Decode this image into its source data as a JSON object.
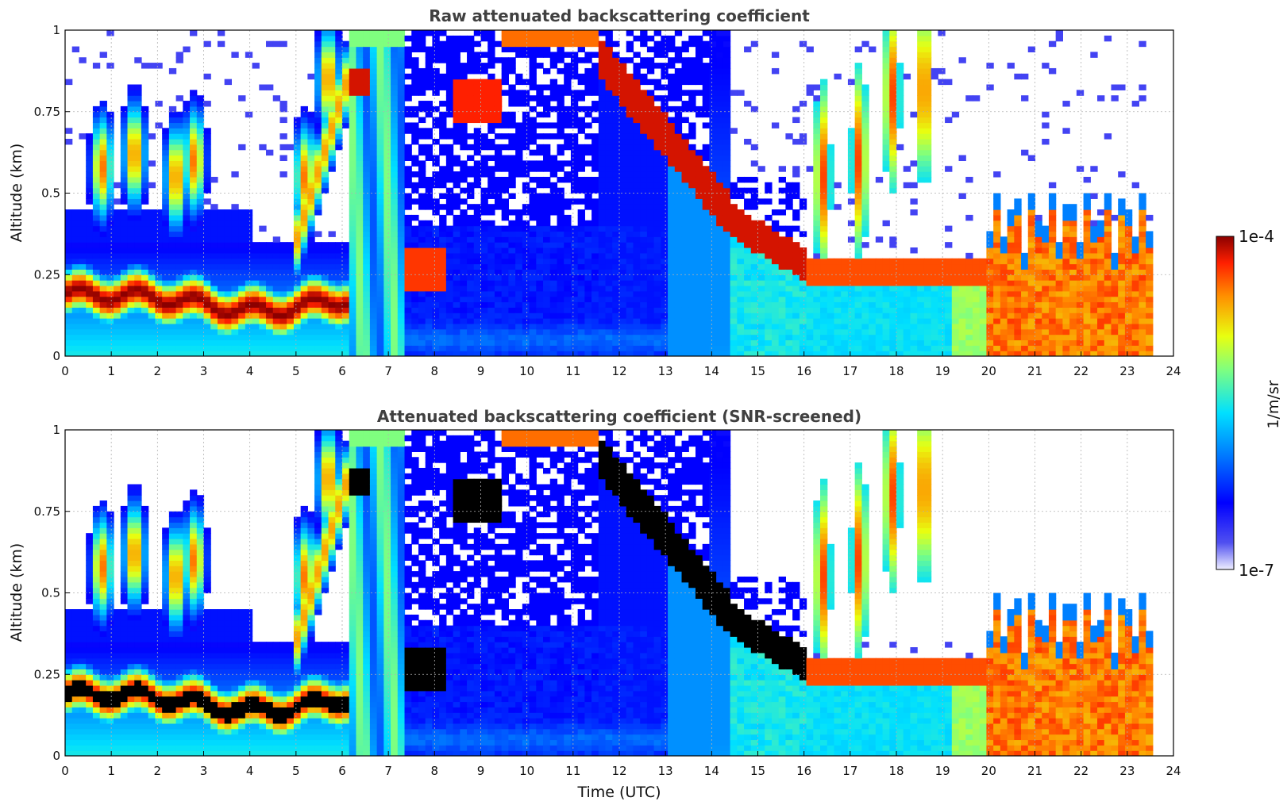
{
  "chart_data": [
    {
      "type": "heatmap",
      "title": "Raw attenuated backscattering coefficient",
      "xlabel": "",
      "ylabel": "Altitude (km)",
      "xlim": [
        0,
        24
      ],
      "ylim": [
        0,
        1
      ],
      "x_ticks": [
        "0",
        "1",
        "2",
        "3",
        "4",
        "5",
        "6",
        "7",
        "8",
        "9",
        "10",
        "11",
        "12",
        "13",
        "14",
        "15",
        "16",
        "17",
        "18",
        "19",
        "20",
        "21",
        "22",
        "23",
        "24"
      ],
      "y_ticks": [
        "0",
        "0.25",
        "0.5",
        "0.75",
        "1"
      ],
      "grid": true,
      "data_end_time": 23.5,
      "features": [
        {
          "name": "boundary layer aerosol",
          "time": [
            0,
            6.1
          ],
          "altitude_km": [
            0.12,
            0.25
          ],
          "level": "high"
        },
        {
          "name": "fog / low cloud column",
          "time": [
            6.1,
            7.4
          ],
          "altitude_km": [
            0,
            1
          ],
          "level": "medium"
        },
        {
          "name": "elevated layer",
          "time": [
            8.4,
            9.5
          ],
          "altitude_km": [
            0.72,
            0.85
          ],
          "level": "high"
        },
        {
          "name": "descending cloud layer",
          "time": [
            11.5,
            16
          ],
          "altitude_km_start": 0.95,
          "altitude_km_end": 0.3,
          "level": "high"
        },
        {
          "name": "evening aerosol",
          "time": [
            20,
            23.5
          ],
          "altitude_km": [
            0.02,
            0.3
          ],
          "level": "medium-high"
        }
      ]
    },
    {
      "type": "heatmap",
      "title": "Attenuated backscattering coefficient (SNR-screened)",
      "xlabel": "Time (UTC)",
      "ylabel": "Altitude (km)",
      "xlim": [
        0,
        24
      ],
      "ylim": [
        0,
        1
      ],
      "x_ticks": [
        "0",
        "1",
        "2",
        "3",
        "4",
        "5",
        "6",
        "7",
        "8",
        "9",
        "10",
        "11",
        "12",
        "13",
        "14",
        "15",
        "16",
        "17",
        "18",
        "19",
        "20",
        "21",
        "22",
        "23",
        "24"
      ],
      "y_ticks": [
        "0",
        "0.25",
        "0.5",
        "0.75",
        "1"
      ],
      "grid": true,
      "data_end_time": 23.5,
      "saturated_color": "#000000"
    }
  ],
  "colorbar": {
    "label": "1/m/sr",
    "max_label": "1e-4",
    "min_label": "1e-7",
    "colormap": "jet",
    "scale": "log"
  }
}
